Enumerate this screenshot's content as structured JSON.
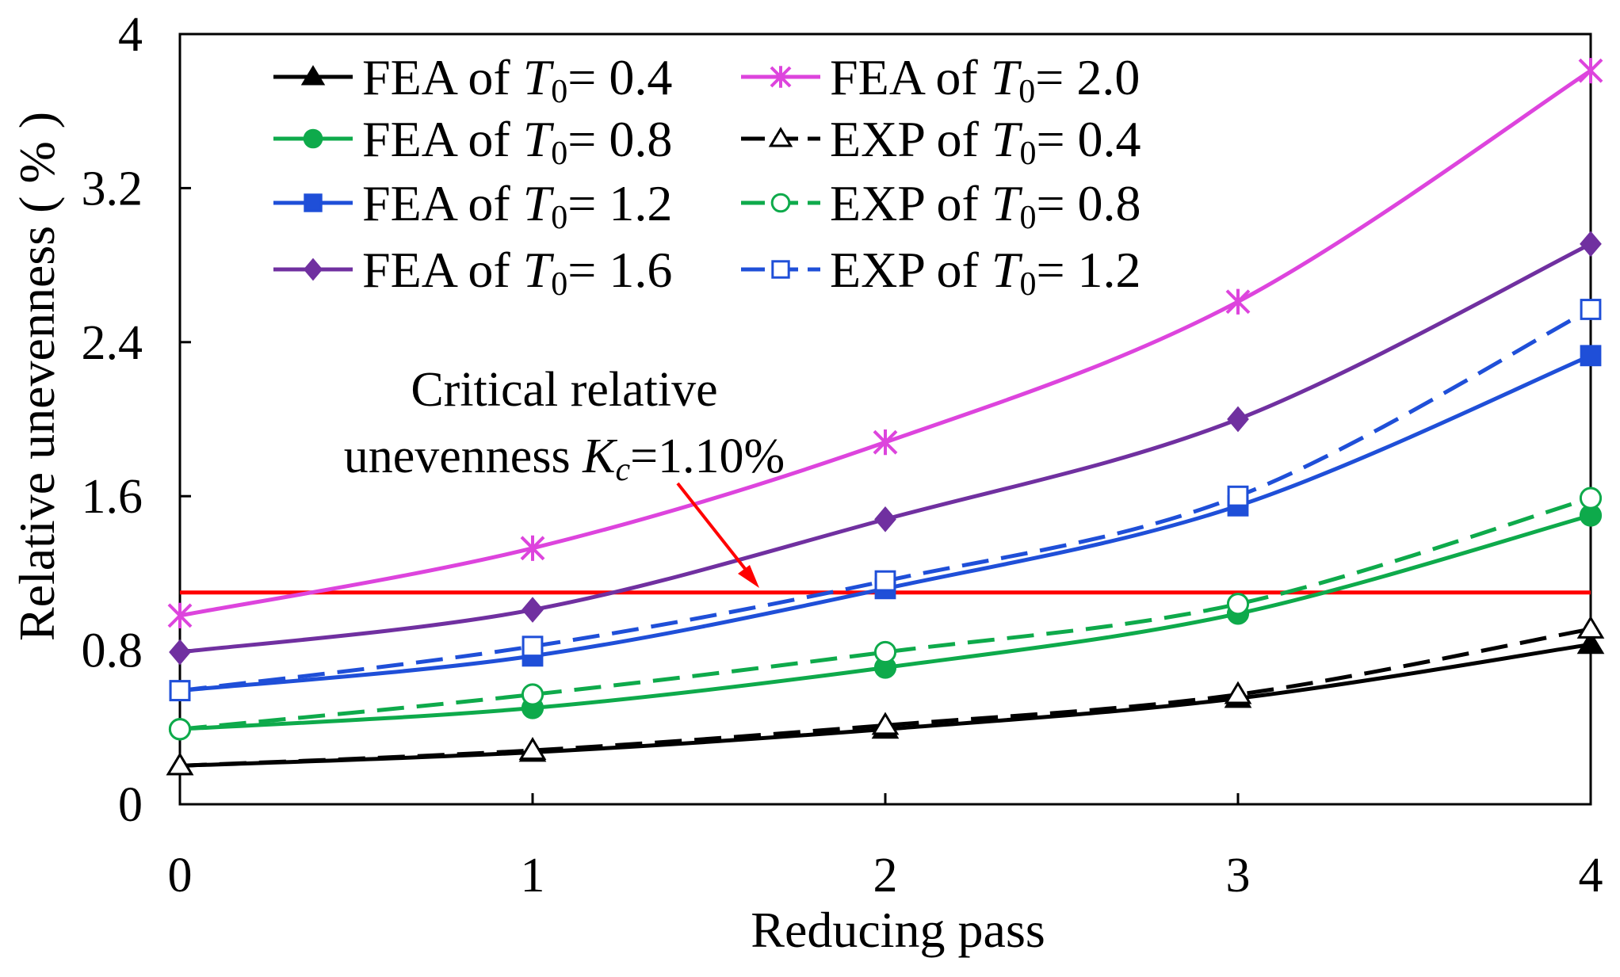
{
  "chart_data": {
    "type": "line",
    "xlabel": "Reducing pass",
    "ylabel": "Relative unevenness ( % )",
    "xlim": [
      0,
      4
    ],
    "ylim": [
      0,
      4
    ],
    "x_ticks": [
      "0",
      "1",
      "2",
      "3",
      "4"
    ],
    "y_ticks": [
      "0",
      "0.8",
      "1.6",
      "2.4",
      "3.2",
      "4"
    ],
    "x": [
      0,
      1,
      2,
      3,
      4
    ],
    "series": [
      {
        "name": "FEA of T0 = 0.4",
        "prefix": "FEA of ",
        "var": "T",
        "sub": "0",
        "suffix": "= 0.4",
        "color": "#000000",
        "marker": "triangle",
        "filled": true,
        "dashed": false,
        "values": [
          0.2,
          0.27,
          0.39,
          0.55,
          0.83
        ]
      },
      {
        "name": "FEA of T0 = 0.8",
        "prefix": "FEA of ",
        "var": "T",
        "sub": "0",
        "suffix": "= 0.8",
        "color": "#0eaa4b",
        "marker": "circle",
        "filled": true,
        "dashed": false,
        "values": [
          0.39,
          0.5,
          0.71,
          0.99,
          1.5
        ]
      },
      {
        "name": "FEA of T0 = 1.2",
        "prefix": "FEA of ",
        "var": "T",
        "sub": "0",
        "suffix": "= 1.2",
        "color": "#1f4fd8",
        "marker": "square",
        "filled": true,
        "dashed": false,
        "values": [
          0.59,
          0.77,
          1.12,
          1.55,
          2.33
        ]
      },
      {
        "name": "FEA of T0 = 1.6",
        "prefix": "FEA of ",
        "var": "T",
        "sub": "0",
        "suffix": "= 1.6",
        "color": "#7030a0",
        "marker": "diamond",
        "filled": true,
        "dashed": false,
        "values": [
          0.79,
          1.01,
          1.48,
          2.0,
          2.91
        ]
      },
      {
        "name": "FEA of T0 = 2.0",
        "prefix": "FEA of ",
        "var": "T",
        "sub": "0",
        "suffix": "= 2.0",
        "color": "#dd44dd",
        "marker": "asterisk",
        "filled": true,
        "dashed": false,
        "values": [
          0.98,
          1.33,
          1.88,
          2.61,
          3.81
        ]
      },
      {
        "name": "EXP of T0 = 0.4",
        "prefix": "EXP of ",
        "var": "T",
        "sub": "0",
        "suffix": "= 0.4",
        "color": "#000000",
        "marker": "triangle",
        "filled": false,
        "dashed": true,
        "values": [
          0.2,
          0.28,
          0.41,
          0.57,
          0.91
        ]
      },
      {
        "name": "EXP of T0 = 0.8",
        "prefix": "EXP of ",
        "var": "T",
        "sub": "0",
        "suffix": "= 0.8",
        "color": "#0eaa4b",
        "marker": "circle",
        "filled": false,
        "dashed": true,
        "values": [
          0.39,
          0.57,
          0.79,
          1.04,
          1.59
        ]
      },
      {
        "name": "EXP of T0 = 1.2",
        "prefix": "EXP of ",
        "var": "T",
        "sub": "0",
        "suffix": "= 1.2",
        "color": "#1f4fd8",
        "marker": "square",
        "filled": false,
        "dashed": true,
        "values": [
          0.59,
          0.82,
          1.16,
          1.6,
          2.57
        ]
      }
    ],
    "reference_line": {
      "name": "Critical relative unevenness Kc=1.10%",
      "y": 1.1,
      "color": "#ff0000"
    },
    "annotation": {
      "line1": "Critical relative",
      "line2_prefix": "unevenness ",
      "line2_var": "K",
      "line2_sub": "c",
      "line2_suffix": "=1.10%"
    },
    "legend_position": "top-center, two columns"
  }
}
